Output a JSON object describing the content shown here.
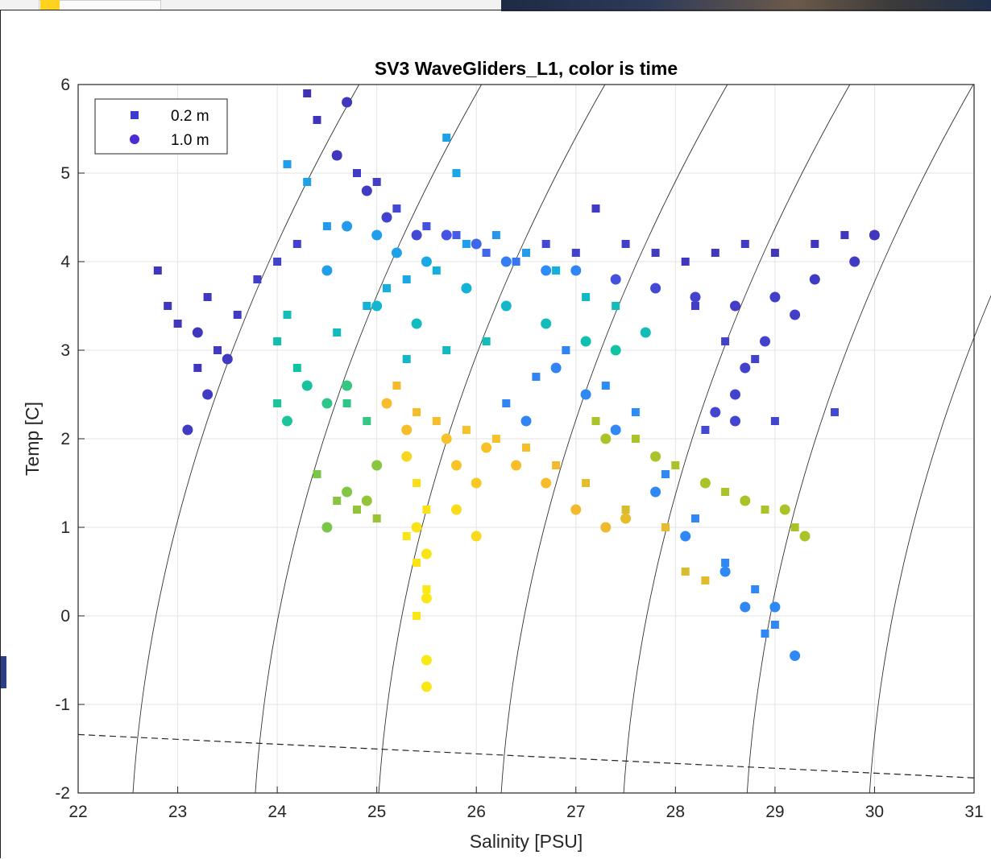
{
  "chart_data": {
    "type": "scatter",
    "title": "SV3 WaveGliders_L1, color is time",
    "xlabel": "Salinity [PSU]",
    "ylabel": "Temp [C]",
    "xlim": [
      22,
      31
    ],
    "ylim": [
      -2,
      6
    ],
    "xticks": [
      "22",
      "23",
      "24",
      "25",
      "26",
      "27",
      "28",
      "29",
      "30",
      "31"
    ],
    "yticks": [
      "-2",
      "-1",
      "0",
      "1",
      "2",
      "3",
      "4",
      "5",
      "6"
    ],
    "grid": true,
    "legend_position": "top-left",
    "colormap": "parula (early = blue, late = yellow)",
    "series": [
      {
        "name": "0.2 m",
        "marker": "square",
        "color": "#3d3ad0",
        "points": [
          [
            22.8,
            3.9,
            0.05
          ],
          [
            22.9,
            3.5,
            0.05
          ],
          [
            23.0,
            3.3,
            0.05
          ],
          [
            23.2,
            2.8,
            0.05
          ],
          [
            23.3,
            3.6,
            0.05
          ],
          [
            23.4,
            3.0,
            0.06
          ],
          [
            23.6,
            3.4,
            0.06
          ],
          [
            23.8,
            3.8,
            0.07
          ],
          [
            24.0,
            4.0,
            0.08
          ],
          [
            24.2,
            4.2,
            0.08
          ],
          [
            24.3,
            5.9,
            0.03
          ],
          [
            24.4,
            5.6,
            0.04
          ],
          [
            24.6,
            5.2,
            0.05
          ],
          [
            24.8,
            5.0,
            0.06
          ],
          [
            25.0,
            4.9,
            0.07
          ],
          [
            25.2,
            4.6,
            0.1
          ],
          [
            25.5,
            4.4,
            0.12
          ],
          [
            25.8,
            4.3,
            0.15
          ],
          [
            26.1,
            4.1,
            0.18
          ],
          [
            26.4,
            4.0,
            0.22
          ],
          [
            26.7,
            4.2,
            0.1
          ],
          [
            27.0,
            4.1,
            0.08
          ],
          [
            27.2,
            4.6,
            0.06
          ],
          [
            27.5,
            4.2,
            0.07
          ],
          [
            27.8,
            4.1,
            0.06
          ],
          [
            28.1,
            4.0,
            0.05
          ],
          [
            28.4,
            4.1,
            0.05
          ],
          [
            28.7,
            4.2,
            0.06
          ],
          [
            29.0,
            4.1,
            0.05
          ],
          [
            29.4,
            4.2,
            0.05
          ],
          [
            29.7,
            4.3,
            0.05
          ],
          [
            30.0,
            4.3,
            0.05
          ],
          [
            28.2,
            3.5,
            0.07
          ],
          [
            28.5,
            3.1,
            0.08
          ],
          [
            28.8,
            2.9,
            0.08
          ],
          [
            29.0,
            2.2,
            0.09
          ],
          [
            29.6,
            2.3,
            0.1
          ],
          [
            28.3,
            2.1,
            0.1
          ],
          [
            24.1,
            5.1,
            0.33
          ],
          [
            24.3,
            4.9,
            0.34
          ],
          [
            25.7,
            5.4,
            0.34
          ],
          [
            25.8,
            5.0,
            0.35
          ],
          [
            24.5,
            4.4,
            0.32
          ],
          [
            24.0,
            3.1,
            0.48
          ],
          [
            24.2,
            2.8,
            0.5
          ],
          [
            24.0,
            2.4,
            0.52
          ],
          [
            24.1,
            3.4,
            0.46
          ],
          [
            24.6,
            3.2,
            0.45
          ],
          [
            24.9,
            3.5,
            0.4
          ],
          [
            25.1,
            3.7,
            0.38
          ],
          [
            25.3,
            3.8,
            0.36
          ],
          [
            25.6,
            3.9,
            0.38
          ],
          [
            25.9,
            4.2,
            0.33
          ],
          [
            26.2,
            4.3,
            0.31
          ],
          [
            26.5,
            4.1,
            0.33
          ],
          [
            26.8,
            3.9,
            0.38
          ],
          [
            27.1,
            3.6,
            0.44
          ],
          [
            27.4,
            3.5,
            0.46
          ],
          [
            25.3,
            2.9,
            0.42
          ],
          [
            25.7,
            3.0,
            0.44
          ],
          [
            26.1,
            3.1,
            0.46
          ],
          [
            25.2,
            2.6,
            0.82
          ],
          [
            25.4,
            2.3,
            0.83
          ],
          [
            25.6,
            2.2,
            0.84
          ],
          [
            25.9,
            2.1,
            0.85
          ],
          [
            26.2,
            2.0,
            0.85
          ],
          [
            26.5,
            1.9,
            0.84
          ],
          [
            26.8,
            1.7,
            0.82
          ],
          [
            27.1,
            1.5,
            0.8
          ],
          [
            27.5,
            1.2,
            0.78
          ],
          [
            27.9,
            1.0,
            0.8
          ],
          [
            28.1,
            0.5,
            0.78
          ],
          [
            28.3,
            0.4,
            0.79
          ],
          [
            25.4,
            1.5,
            0.96
          ],
          [
            25.5,
            1.2,
            0.97
          ],
          [
            25.3,
            0.9,
            0.98
          ],
          [
            25.4,
            0.6,
            0.98
          ],
          [
            25.5,
            0.3,
            0.99
          ],
          [
            25.4,
            0.0,
            0.99
          ],
          [
            24.7,
            2.4,
            0.55
          ],
          [
            24.9,
            2.2,
            0.56
          ],
          [
            24.4,
            1.6,
            0.66
          ],
          [
            24.6,
            1.3,
            0.68
          ],
          [
            24.8,
            1.2,
            0.69
          ],
          [
            25.0,
            1.1,
            0.7
          ],
          [
            27.2,
            2.2,
            0.72
          ],
          [
            27.6,
            2.0,
            0.72
          ],
          [
            28.0,
            1.7,
            0.72
          ],
          [
            28.5,
            1.4,
            0.72
          ],
          [
            28.9,
            1.2,
            0.72
          ],
          [
            29.2,
            1.0,
            0.72
          ],
          [
            27.3,
            2.6,
            0.28
          ],
          [
            27.6,
            2.3,
            0.28
          ],
          [
            27.9,
            1.6,
            0.27
          ],
          [
            28.2,
            1.1,
            0.27
          ],
          [
            28.5,
            0.6,
            0.27
          ],
          [
            28.8,
            0.3,
            0.27
          ],
          [
            29.0,
            -0.1,
            0.27
          ],
          [
            28.9,
            -0.2,
            0.27
          ],
          [
            26.3,
            2.4,
            0.26
          ],
          [
            26.6,
            2.7,
            0.26
          ],
          [
            26.9,
            3.0,
            0.26
          ]
        ]
      },
      {
        "name": "1.0 m",
        "marker": "circle",
        "color": "#4a2bd6",
        "points": [
          [
            23.1,
            2.1,
            0.06
          ],
          [
            23.3,
            2.5,
            0.06
          ],
          [
            23.5,
            2.9,
            0.06
          ],
          [
            23.2,
            3.2,
            0.05
          ],
          [
            24.7,
            5.8,
            0.05
          ],
          [
            24.6,
            5.2,
            0.05
          ],
          [
            24.9,
            4.8,
            0.06
          ],
          [
            25.1,
            4.5,
            0.08
          ],
          [
            25.4,
            4.3,
            0.1
          ],
          [
            25.7,
            4.3,
            0.13
          ],
          [
            26.0,
            4.2,
            0.18
          ],
          [
            26.3,
            4.0,
            0.24
          ],
          [
            26.7,
            3.9,
            0.28
          ],
          [
            27.0,
            3.9,
            0.26
          ],
          [
            27.4,
            3.8,
            0.12
          ],
          [
            27.8,
            3.7,
            0.1
          ],
          [
            28.2,
            3.6,
            0.08
          ],
          [
            28.6,
            3.5,
            0.07
          ],
          [
            29.0,
            3.6,
            0.07
          ],
          [
            29.4,
            3.8,
            0.06
          ],
          [
            29.8,
            4.0,
            0.06
          ],
          [
            30.0,
            4.3,
            0.05
          ],
          [
            29.2,
            3.4,
            0.07
          ],
          [
            28.9,
            3.1,
            0.08
          ],
          [
            28.7,
            2.8,
            0.08
          ],
          [
            28.6,
            2.5,
            0.08
          ],
          [
            28.4,
            2.3,
            0.09
          ],
          [
            28.6,
            2.2,
            0.09
          ],
          [
            24.5,
            3.9,
            0.33
          ],
          [
            24.7,
            4.4,
            0.32
          ],
          [
            25.0,
            4.3,
            0.33
          ],
          [
            25.2,
            4.1,
            0.34
          ],
          [
            25.5,
            4.0,
            0.36
          ],
          [
            25.9,
            3.7,
            0.4
          ],
          [
            26.3,
            3.5,
            0.43
          ],
          [
            26.7,
            3.3,
            0.46
          ],
          [
            27.1,
            3.1,
            0.48
          ],
          [
            27.4,
            3.0,
            0.5
          ],
          [
            27.7,
            3.2,
            0.46
          ],
          [
            25.0,
            3.5,
            0.42
          ],
          [
            25.4,
            3.3,
            0.45
          ],
          [
            24.1,
            2.2,
            0.52
          ],
          [
            24.3,
            2.6,
            0.51
          ],
          [
            24.5,
            2.4,
            0.55
          ],
          [
            24.7,
            2.6,
            0.56
          ],
          [
            25.1,
            2.4,
            0.83
          ],
          [
            25.3,
            2.1,
            0.84
          ],
          [
            25.7,
            2.0,
            0.85
          ],
          [
            26.1,
            1.9,
            0.85
          ],
          [
            26.4,
            1.7,
            0.84
          ],
          [
            26.7,
            1.5,
            0.83
          ],
          [
            27.0,
            1.2,
            0.82
          ],
          [
            27.3,
            1.0,
            0.81
          ],
          [
            27.5,
            1.1,
            0.8
          ],
          [
            25.8,
            1.7,
            0.86
          ],
          [
            26.0,
            1.5,
            0.88
          ],
          [
            25.3,
            1.8,
            0.93
          ],
          [
            25.4,
            1.0,
            0.97
          ],
          [
            25.5,
            0.7,
            0.98
          ],
          [
            25.5,
            0.2,
            0.99
          ],
          [
            25.5,
            -0.5,
            0.99
          ],
          [
            25.5,
            -0.8,
            0.99
          ],
          [
            25.8,
            1.2,
            0.95
          ],
          [
            26.0,
            0.9,
            0.94
          ],
          [
            24.5,
            1.0,
            0.66
          ],
          [
            24.7,
            1.4,
            0.67
          ],
          [
            25.0,
            1.7,
            0.68
          ],
          [
            24.9,
            1.3,
            0.69
          ],
          [
            27.3,
            2.0,
            0.72
          ],
          [
            27.8,
            1.8,
            0.72
          ],
          [
            28.3,
            1.5,
            0.72
          ],
          [
            28.7,
            1.3,
            0.72
          ],
          [
            29.1,
            1.2,
            0.72
          ],
          [
            29.3,
            0.9,
            0.72
          ],
          [
            27.1,
            2.5,
            0.27
          ],
          [
            27.4,
            2.1,
            0.27
          ],
          [
            27.8,
            1.4,
            0.27
          ],
          [
            28.1,
            0.9,
            0.27
          ],
          [
            28.5,
            0.5,
            0.27
          ],
          [
            28.7,
            0.1,
            0.27
          ],
          [
            29.0,
            0.1,
            0.27
          ],
          [
            29.2,
            -0.45,
            0.27
          ],
          [
            26.5,
            2.2,
            0.26
          ],
          [
            26.8,
            2.8,
            0.26
          ]
        ]
      }
    ],
    "reference_lines": {
      "isopycnals": "solid thin black curves",
      "freezing_line": {
        "style": "dashed",
        "x": [
          22,
          31
        ],
        "y": [
          -1.34,
          -1.83
        ]
      }
    }
  }
}
